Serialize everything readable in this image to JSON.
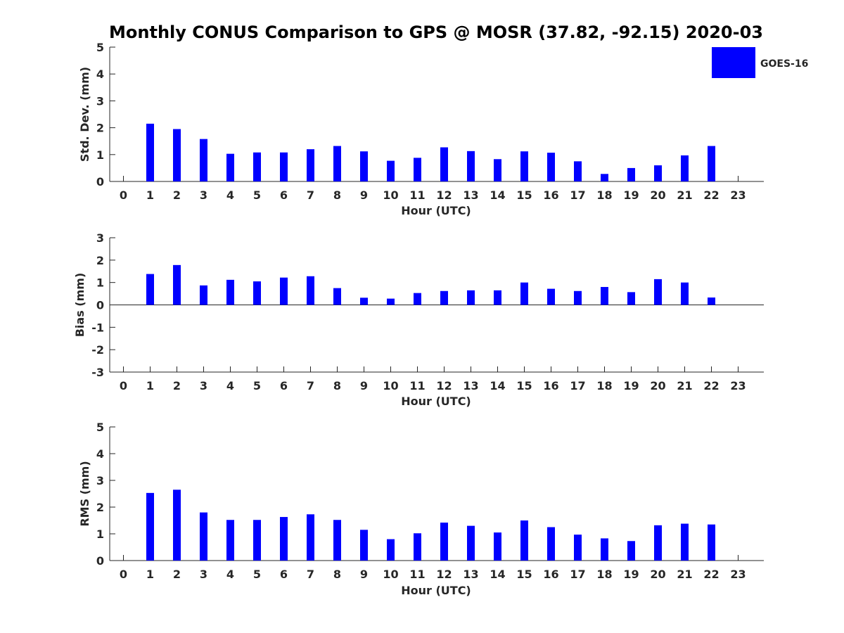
{
  "title": "Monthly CONUS Comparison to GPS @ MOSR (37.82, -92.15) 2020-03",
  "legend": {
    "label": "GOES-16",
    "color": "#0000ff",
    "placement": "top-right"
  },
  "chart_data": [
    {
      "type": "bar",
      "ylabel": "Std. Dev. (mm)",
      "xlabel": "Hour (UTC)",
      "ylim": [
        0,
        5
      ],
      "yticks": [
        0,
        1,
        2,
        3,
        4,
        5
      ],
      "categories": [
        "0",
        "1",
        "2",
        "3",
        "4",
        "5",
        "6",
        "7",
        "8",
        "9",
        "10",
        "11",
        "12",
        "13",
        "14",
        "15",
        "16",
        "17",
        "18",
        "19",
        "20",
        "21",
        "22",
        "23"
      ],
      "series": [
        {
          "name": "GOES-16",
          "color": "#0000ff",
          "values": [
            null,
            2.15,
            1.95,
            1.58,
            1.03,
            1.08,
            1.08,
            1.2,
            1.32,
            1.12,
            0.77,
            0.88,
            1.27,
            1.13,
            0.83,
            1.12,
            1.07,
            0.75,
            0.28,
            0.5,
            0.6,
            0.97,
            1.32,
            null
          ]
        }
      ]
    },
    {
      "type": "bar",
      "ylabel": "Bias (mm)",
      "xlabel": "Hour (UTC)",
      "ylim": [
        -3,
        3
      ],
      "yticks": [
        -3,
        -2,
        -1,
        0,
        1,
        2,
        3
      ],
      "zero_line": true,
      "categories": [
        "0",
        "1",
        "2",
        "3",
        "4",
        "5",
        "6",
        "7",
        "8",
        "9",
        "10",
        "11",
        "12",
        "13",
        "14",
        "15",
        "16",
        "17",
        "18",
        "19",
        "20",
        "21",
        "22",
        "23"
      ],
      "series": [
        {
          "name": "GOES-16",
          "color": "#0000ff",
          "values": [
            null,
            1.38,
            1.78,
            0.87,
            1.12,
            1.05,
            1.22,
            1.28,
            0.75,
            0.32,
            0.28,
            0.53,
            0.62,
            0.65,
            0.65,
            1.0,
            0.72,
            0.62,
            0.8,
            0.57,
            1.15,
            1.0,
            0.33,
            null
          ]
        }
      ]
    },
    {
      "type": "bar",
      "ylabel": "RMS (mm)",
      "xlabel": "Hour (UTC)",
      "ylim": [
        0,
        5
      ],
      "yticks": [
        0,
        1,
        2,
        3,
        4,
        5
      ],
      "categories": [
        "0",
        "1",
        "2",
        "3",
        "4",
        "5",
        "6",
        "7",
        "8",
        "9",
        "10",
        "11",
        "12",
        "13",
        "14",
        "15",
        "16",
        "17",
        "18",
        "19",
        "20",
        "21",
        "22",
        "23"
      ],
      "series": [
        {
          "name": "GOES-16",
          "color": "#0000ff",
          "values": [
            null,
            2.53,
            2.65,
            1.8,
            1.52,
            1.52,
            1.63,
            1.73,
            1.52,
            1.15,
            0.8,
            1.02,
            1.42,
            1.3,
            1.05,
            1.5,
            1.25,
            0.97,
            0.83,
            0.73,
            1.32,
            1.38,
            1.35,
            null
          ]
        }
      ]
    }
  ]
}
